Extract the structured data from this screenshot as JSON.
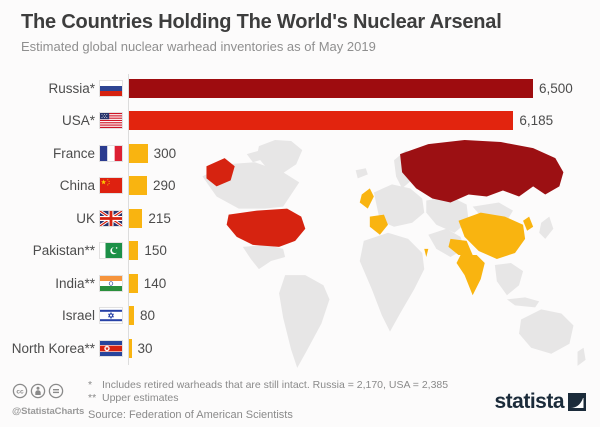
{
  "header": {
    "title": "The Countries Holding The World's Nuclear Arsenal",
    "subtitle": "Estimated global nuclear warhead inventories as of May 2019"
  },
  "chart_data": {
    "type": "bar",
    "orientation": "horizontal",
    "title": "The Countries Holding The World's Nuclear Arsenal",
    "subtitle": "Estimated global nuclear warhead inventories as of May 2019",
    "categories": [
      "Russia*",
      "USA*",
      "France",
      "China",
      "UK",
      "Pakistan**",
      "India**",
      "Israel",
      "North Korea**"
    ],
    "values": [
      6500,
      6185,
      300,
      290,
      215,
      150,
      140,
      80,
      30
    ],
    "display_values": [
      "6,500",
      "6,185",
      "300",
      "290",
      "215",
      "150",
      "140",
      "80",
      "30"
    ],
    "flags": [
      "russia",
      "usa",
      "france",
      "china",
      "uk",
      "pakistan",
      "india",
      "israel",
      "north-korea"
    ],
    "bar_colors": [
      "#9e0c0f",
      "#e2240e",
      "#f9b410",
      "#f9b410",
      "#f9b410",
      "#f9b410",
      "#f9b410",
      "#f9b410",
      "#f9b410"
    ],
    "xlim": [
      0,
      6500
    ],
    "grid": false,
    "legend": false
  },
  "map": {
    "land_color": "#e7e6e6",
    "highlight_dark_red": "Russia",
    "highlight_red": "USA",
    "highlight_yellow": [
      "UK",
      "France",
      "Israel",
      "Pakistan",
      "India",
      "China",
      "North Korea"
    ],
    "colors": {
      "dark_red": "#9c1013",
      "red": "#d62310",
      "yellow": "#f9b410"
    }
  },
  "footer": {
    "note1_marker": "*",
    "note1_text": "Includes retired warheads that are still intact. Russia = 2,170, USA = 2,385",
    "note2_marker": "**",
    "note2_text": "Upper estimates",
    "source": "Source: Federation of American Scientists",
    "credit": "@StatistaCharts",
    "license_icons": [
      "cc",
      "attribution",
      "no-derivatives"
    ],
    "brand_text": "statista",
    "brand_color": "#1b2b3a"
  }
}
